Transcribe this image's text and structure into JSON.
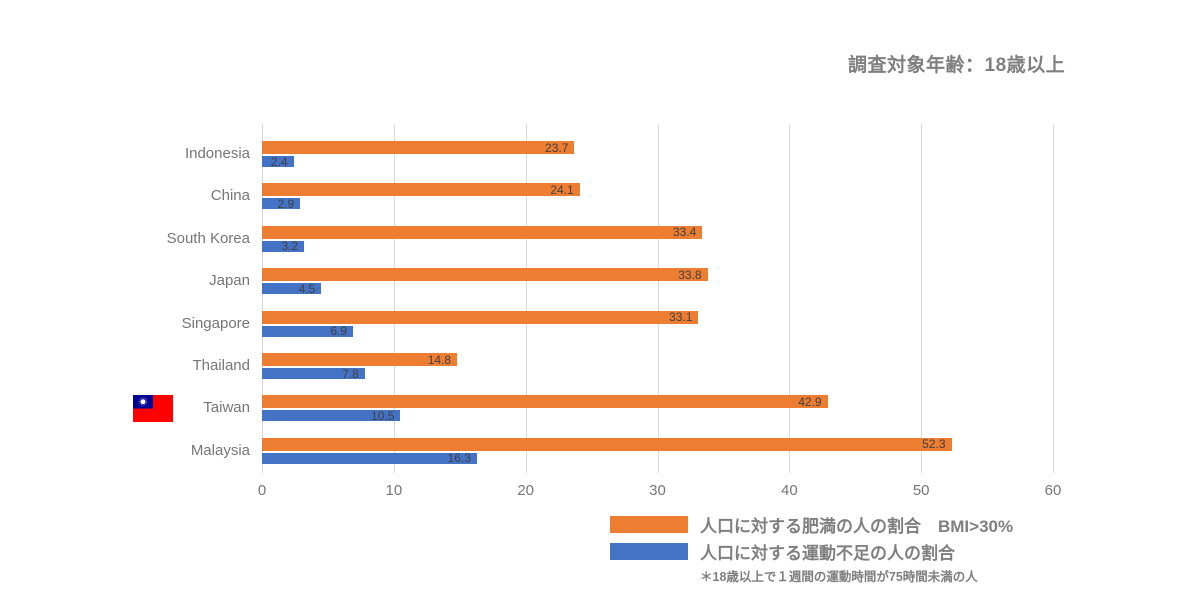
{
  "header": {
    "survey_note": "調査対象年齢：18歳以上"
  },
  "chart_data": {
    "type": "bar",
    "orientation": "horizontal",
    "categories": [
      "Indonesia",
      "China",
      "South Korea",
      "Japan",
      "Singapore",
      "Thailand",
      "Taiwan",
      "Malaysia"
    ],
    "series": [
      {
        "id": "obesity",
        "name": "人口に対する肥満の人の割合　BMI>30%",
        "color": "#ED7D31",
        "values": [
          23.7,
          24.1,
          33.4,
          33.8,
          33.1,
          14.8,
          42.9,
          52.3
        ]
      },
      {
        "id": "inactivity",
        "name": "人口に対する運動不足の人の割合",
        "color": "#4472C4",
        "values": [
          2.4,
          2.9,
          3.2,
          4.5,
          6.9,
          7.8,
          10.5,
          16.3
        ]
      }
    ],
    "xlim": [
      0,
      60
    ],
    "xticks": [
      0,
      10,
      20,
      30,
      40,
      50,
      60
    ],
    "grid": true,
    "legend_position": "bottom-right",
    "footnote": "＊18歳以上で１週間の運動時間が75時間未満の人",
    "flag_country": "Taiwan"
  },
  "colors": {
    "grid": "#d9d9d9",
    "axis_text": "#767676",
    "value_text": "#404040",
    "legend_text": "#7f7f7f"
  }
}
